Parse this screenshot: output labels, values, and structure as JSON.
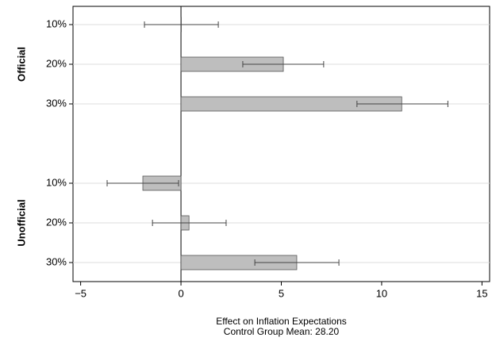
{
  "chart_data": {
    "type": "bar-errorbar",
    "x_label": [
      "Effect on Inflation Expectations",
      "Control Group Mean:  28.20"
    ],
    "groups": [
      {
        "name": "Official",
        "categories": [
          "10%",
          "20%",
          "30%"
        ],
        "values": [
          0.02,
          5.1,
          11.0
        ],
        "ci_low": [
          -1.82,
          3.08,
          8.77
        ],
        "ci_high": [
          1.86,
          7.11,
          13.3
        ]
      },
      {
        "name": "Unofficial",
        "categories": [
          "10%",
          "20%",
          "30%"
        ],
        "values": [
          -1.9,
          0.4,
          5.77
        ],
        "ci_low": [
          -3.68,
          -1.42,
          3.68
        ],
        "ci_high": [
          -0.12,
          2.25,
          7.87
        ]
      }
    ],
    "color": "#bebebe",
    "xlim": [
      -5.38,
      15.38
    ],
    "xticks": [
      {
        "value": -5,
        "label": "−5"
      },
      0,
      5,
      10,
      15
    ],
    "grid": true
  }
}
